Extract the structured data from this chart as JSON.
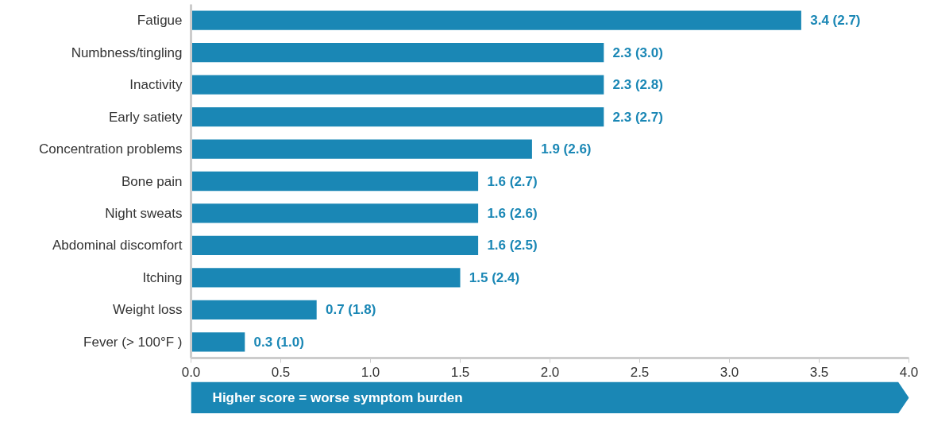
{
  "chart_data": {
    "type": "bar",
    "orientation": "horizontal",
    "categories": [
      "Fatigue",
      "Numbness/tingling",
      "Inactivity",
      "Early satiety",
      "Concentration problems",
      "Bone pain",
      "Night sweats",
      "Abdominal discomfort",
      "Itching",
      "Weight loss",
      "Fever (> 100°F )"
    ],
    "values": [
      3.4,
      2.3,
      2.3,
      2.3,
      1.9,
      1.6,
      1.6,
      1.6,
      1.5,
      0.7,
      0.3
    ],
    "value_labels": [
      "3.4 (2.7)",
      "2.3 (3.0)",
      "2.3 (2.8)",
      "2.3 (2.7)",
      "1.9 (2.6)",
      "1.6 (2.7)",
      "1.6 (2.6)",
      "1.6 (2.5)",
      "1.5 (2.4)",
      "0.7 (1.8)",
      "0.3 (1.0)"
    ],
    "color": "#1a87b5",
    "xlim": [
      0,
      4
    ],
    "xticks": [
      {
        "value": 0,
        "label": "0.0"
      },
      {
        "value": 0.5,
        "label": "0.5"
      },
      {
        "value": 1,
        "label": "1.0"
      },
      {
        "value": 1.5,
        "label": "1.5"
      },
      {
        "value": 2,
        "label": "2.0"
      },
      {
        "value": 2.5,
        "label": "2.5"
      },
      {
        "value": 3,
        "label": "3.0"
      },
      {
        "value": 3.5,
        "label": "3.5"
      },
      {
        "value": 4,
        "label": "4.0"
      }
    ],
    "grid": false,
    "annotations": [
      "Higher score = worse symptom burden"
    ]
  }
}
